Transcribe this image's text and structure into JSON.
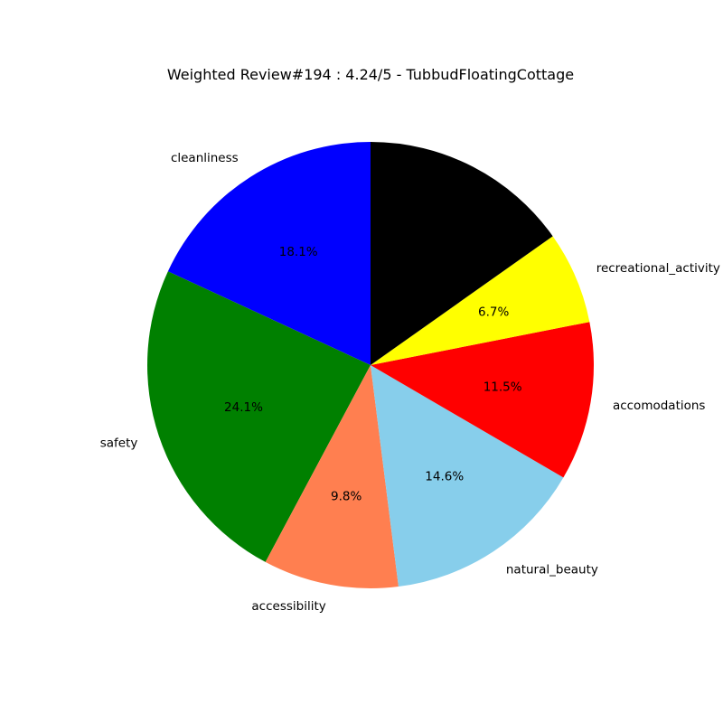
{
  "chart_data": {
    "type": "pie",
    "title": "Weighted Review#194 : 4.24/5 - TubbudFloatingCottage",
    "start_angle_deg": 90,
    "direction": "counterclockwise",
    "slices": [
      {
        "label": "cleanliness",
        "value": 18.1,
        "pct_label": "18.1%",
        "color": "#0000ff"
      },
      {
        "label": "safety",
        "value": 24.1,
        "pct_label": "24.1%",
        "color": "#008000"
      },
      {
        "label": "accessibility",
        "value": 9.8,
        "pct_label": "9.8%",
        "color": "#ff7f50"
      },
      {
        "label": "natural_beauty",
        "value": 14.6,
        "pct_label": "14.6%",
        "color": "#87ceeb"
      },
      {
        "label": "accomodations",
        "value": 11.5,
        "pct_label": "11.5%",
        "color": "#ff0000"
      },
      {
        "label": "recreational_activity",
        "value": 6.7,
        "pct_label": "6.7%",
        "color": "#ffff00"
      },
      {
        "label": "",
        "value": 15.2,
        "pct_label": "",
        "color": "#000000"
      }
    ]
  }
}
